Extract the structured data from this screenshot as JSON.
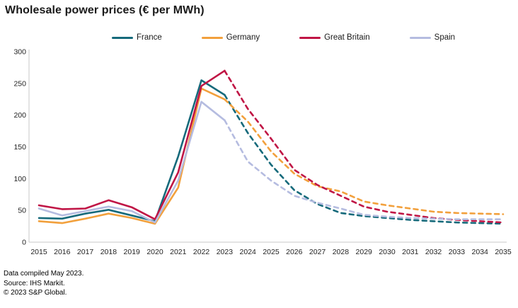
{
  "title": "Wholesale power prices (€ per MWh)",
  "footer": {
    "line1": "Data compiled May 2023.",
    "line2": "Source: IHS Markit.",
    "line3": "© 2023 S&P Global."
  },
  "chart_data": {
    "type": "line",
    "title": "Wholesale power prices (€ per MWh)",
    "xlabel": "",
    "ylabel": "",
    "ylim": [
      0,
      300
    ],
    "yticks": [
      0,
      50,
      100,
      150,
      200,
      250,
      300
    ],
    "grid": false,
    "legend_position": "top",
    "solid_until_x": 2023,
    "forecast_style": "dashed after 2023",
    "x": [
      2015,
      2016,
      2017,
      2018,
      2019,
      2020,
      2021,
      2022,
      2023,
      2024,
      2025,
      2026,
      2027,
      2028,
      2029,
      2030,
      2031,
      2032,
      2033,
      2034,
      2035
    ],
    "series": [
      {
        "name": "France",
        "color": "#166a7b",
        "values": [
          38,
          37,
          45,
          51,
          42,
          33,
          135,
          255,
          232,
          172,
          122,
          82,
          60,
          46,
          41,
          38,
          35,
          33,
          31,
          30,
          29
        ]
      },
      {
        "name": "Germany",
        "color": "#f2a03c",
        "values": [
          33,
          30,
          37,
          45,
          38,
          29,
          86,
          242,
          225,
          190,
          143,
          108,
          88,
          80,
          64,
          58,
          53,
          48,
          46,
          45,
          44
        ]
      },
      {
        "name": "Great Britain",
        "color": "#c01545",
        "values": [
          58,
          52,
          53,
          66,
          55,
          36,
          110,
          246,
          270,
          210,
          163,
          114,
          90,
          73,
          56,
          48,
          43,
          38,
          35,
          33,
          31
        ]
      },
      {
        "name": "Spain",
        "color": "#b5bce0",
        "values": [
          53,
          42,
          49,
          56,
          49,
          31,
          97,
          221,
          192,
          127,
          97,
          73,
          62,
          53,
          43,
          40,
          38,
          37,
          36,
          36,
          36
        ]
      }
    ]
  }
}
